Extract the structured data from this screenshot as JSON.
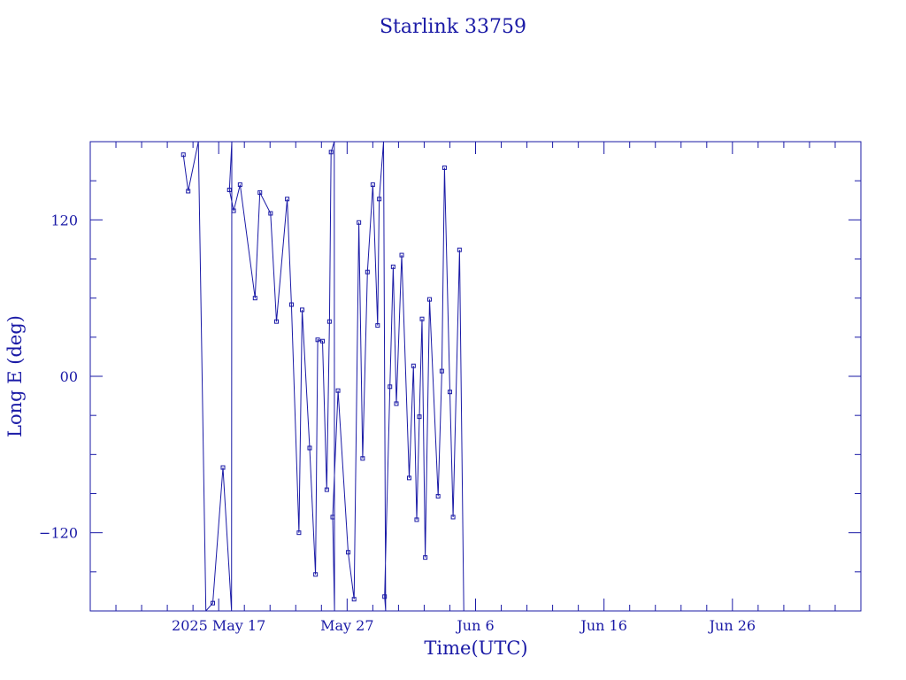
{
  "chart_data": {
    "type": "line",
    "title": "Starlink 33759",
    "xlabel": "Time(UTC)",
    "ylabel": "Long E (deg)",
    "x_unit": "days",
    "xlim": [
      "2025-05-07",
      "2025-07-06"
    ],
    "ylim": [
      -180,
      180
    ],
    "x_ticks": [
      {
        "date": "2025-05-17",
        "label": "2025 May 17"
      },
      {
        "date": "2025-05-27",
        "label": "May 27"
      },
      {
        "date": "2025-06-06",
        "label": "Jun  6"
      },
      {
        "date": "2025-06-16",
        "label": "Jun 16"
      },
      {
        "date": "2025-06-26",
        "label": "Jun 26"
      }
    ],
    "y_ticks": [
      {
        "value": -120,
        "label": "−120"
      },
      {
        "value": 0,
        "label": "00"
      },
      {
        "value": 120,
        "label": "120"
      }
    ],
    "grid": false,
    "legend": "none",
    "color": "#1a1aa6",
    "series": [
      {
        "values": [
          [
            "2025-05-14 06:00",
            170
          ],
          [
            "2025-05-14 15:00",
            142
          ],
          [
            "2025-05-15 10:00",
            180
          ],
          [
            "2025-05-16 00:00",
            -180
          ],
          [
            "2025-05-16 13:00",
            -174
          ],
          [
            "2025-05-17 08:00",
            -70
          ],
          [
            "2025-05-18 00:00",
            -180
          ],
          [
            "2025-05-18 00:30",
            180
          ],
          [
            "2025-05-17 20:00",
            143
          ],
          [
            "2025-05-18 04:00",
            127
          ],
          [
            "2025-05-18 16:00",
            147
          ],
          [
            "2025-05-19 20:00",
            60
          ],
          [
            "2025-05-20 05:00",
            141
          ],
          [
            "2025-05-21 01:00",
            125
          ],
          [
            "2025-05-21 12:00",
            42
          ],
          [
            "2025-05-22 08:00",
            136
          ],
          [
            "2025-05-22 16:00",
            55
          ],
          [
            "2025-05-23 06:00",
            -120
          ],
          [
            "2025-05-23 12:00",
            51
          ],
          [
            "2025-05-24 02:00",
            -55
          ],
          [
            "2025-05-24 13:00",
            -152
          ],
          [
            "2025-05-24 17:00",
            28
          ],
          [
            "2025-05-25 02:00",
            27
          ],
          [
            "2025-05-25 10:00",
            -87
          ],
          [
            "2025-05-25 15:00",
            42
          ],
          [
            "2025-05-25 18:00",
            172
          ],
          [
            "2025-05-26 00:00",
            180
          ],
          [
            "2025-05-26 00:30",
            -180
          ],
          [
            "2025-05-25 21:00",
            -108
          ],
          [
            "2025-05-26 07:00",
            -11
          ],
          [
            "2025-05-27 02:00",
            -135
          ],
          [
            "2025-05-27 13:00",
            -171
          ],
          [
            "2025-05-27 22:00",
            118
          ],
          [
            "2025-05-28 05:00",
            -63
          ],
          [
            "2025-05-28 14:00",
            80
          ],
          [
            "2025-05-29 00:00",
            147
          ],
          [
            "2025-05-29 09:00",
            39
          ],
          [
            "2025-05-29 12:00",
            136
          ],
          [
            "2025-05-29 20:00",
            180
          ],
          [
            "2025-05-30 00:00",
            -180
          ],
          [
            "2025-05-29 22:00",
            -169
          ],
          [
            "2025-05-30 08:00",
            -8
          ],
          [
            "2025-05-30 14:00",
            84
          ],
          [
            "2025-05-30 20:00",
            -21
          ],
          [
            "2025-05-31 06:00",
            93
          ],
          [
            "2025-05-31 20:00",
            -78
          ],
          [
            "2025-06-01 04:00",
            8
          ],
          [
            "2025-06-01 10:00",
            -110
          ],
          [
            "2025-06-01 15:00",
            -31
          ],
          [
            "2025-06-01 20:00",
            44
          ],
          [
            "2025-06-02 02:00",
            -139
          ],
          [
            "2025-06-02 10:00",
            59
          ],
          [
            "2025-06-03 02:00",
            -92
          ],
          [
            "2025-06-03 09:00",
            4
          ],
          [
            "2025-06-03 14:00",
            160
          ],
          [
            "2025-06-04 00:00",
            -12
          ],
          [
            "2025-06-04 06:00",
            -108
          ],
          [
            "2025-06-04 18:00",
            97
          ],
          [
            "2025-06-05 02:00",
            -180
          ]
        ]
      }
    ]
  }
}
